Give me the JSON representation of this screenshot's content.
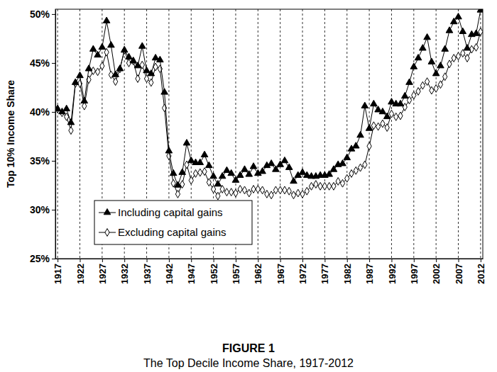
{
  "chart_data": {
    "type": "line",
    "title": "FIGURE 1",
    "subtitle": "The Top Decile Income Share, 1917-2012",
    "y_label": "Top 10% Income Share",
    "x": [
      1917,
      1918,
      1919,
      1920,
      1921,
      1922,
      1923,
      1924,
      1925,
      1926,
      1927,
      1928,
      1929,
      1930,
      1931,
      1932,
      1933,
      1934,
      1935,
      1936,
      1937,
      1938,
      1939,
      1940,
      1941,
      1942,
      1943,
      1944,
      1945,
      1946,
      1947,
      1948,
      1949,
      1950,
      1951,
      1952,
      1953,
      1954,
      1955,
      1956,
      1957,
      1958,
      1959,
      1960,
      1961,
      1962,
      1963,
      1964,
      1965,
      1966,
      1967,
      1968,
      1969,
      1970,
      1971,
      1972,
      1973,
      1974,
      1975,
      1976,
      1977,
      1978,
      1979,
      1980,
      1981,
      1982,
      1983,
      1984,
      1985,
      1986,
      1987,
      1988,
      1989,
      1990,
      1991,
      1992,
      1993,
      1994,
      1995,
      1996,
      1997,
      1998,
      1999,
      2000,
      2001,
      2002,
      2003,
      2004,
      2005,
      2006,
      2007,
      2008,
      2009,
      2010,
      2011,
      2012
    ],
    "series": [
      {
        "name": "Including capital gains",
        "color": "#000000",
        "marker": "triangle",
        "line_style": "solid",
        "values": [
          40.3,
          40.0,
          40.3,
          38.9,
          43.0,
          43.7,
          41.1,
          44.4,
          46.4,
          45.8,
          46.6,
          49.3,
          46.8,
          43.8,
          44.4,
          46.3,
          45.6,
          45.2,
          44.7,
          46.7,
          44.2,
          43.9,
          45.5,
          45.3,
          42.0,
          36.0,
          33.7,
          32.5,
          33.8,
          36.8,
          35.0,
          34.8,
          34.8,
          35.6,
          34.5,
          33.4,
          32.6,
          33.4,
          34.0,
          33.7,
          33.0,
          33.5,
          34.1,
          33.6,
          34.4,
          33.7,
          33.9,
          34.5,
          34.7,
          34.1,
          34.6,
          35.0,
          34.3,
          32.9,
          33.5,
          33.8,
          33.5,
          33.4,
          33.4,
          33.5,
          33.5,
          33.6,
          34.1,
          34.6,
          34.7,
          35.3,
          36.2,
          36.5,
          37.6,
          40.6,
          38.3,
          40.8,
          40.2,
          40.0,
          39.5,
          41.0,
          40.8,
          40.8,
          41.6,
          43.0,
          44.6,
          45.5,
          46.5,
          47.6,
          45.1,
          43.9,
          44.7,
          46.4,
          48.3,
          49.2,
          49.7,
          48.2,
          46.5,
          47.9,
          48.0,
          50.4
        ]
      },
      {
        "name": "Excluding capital gains",
        "color": "#000000",
        "marker": "open-diamond",
        "line_style": "solid",
        "values": [
          40.3,
          39.9,
          39.5,
          38.1,
          42.9,
          42.9,
          40.6,
          43.3,
          44.2,
          44.1,
          44.7,
          46.1,
          43.8,
          43.1,
          44.4,
          46.3,
          45.0,
          45.2,
          43.4,
          44.8,
          43.4,
          43.0,
          44.6,
          44.4,
          40.4,
          35.5,
          32.7,
          31.6,
          32.6,
          34.6,
          33.0,
          33.7,
          33.8,
          33.9,
          32.8,
          32.1,
          31.4,
          32.1,
          31.8,
          31.8,
          31.7,
          32.1,
          32.0,
          31.7,
          32.1,
          32.1,
          32.0,
          31.6,
          31.5,
          32.0,
          32.0,
          32.0,
          31.9,
          31.5,
          31.7,
          31.6,
          31.9,
          32.4,
          32.6,
          32.4,
          32.4,
          32.4,
          32.4,
          32.9,
          32.7,
          33.2,
          33.7,
          34.0,
          34.3,
          34.6,
          36.5,
          38.6,
          38.5,
          38.8,
          38.4,
          39.8,
          39.5,
          39.6,
          40.5,
          41.2,
          41.7,
          42.1,
          42.7,
          43.1,
          42.2,
          42.4,
          42.8,
          43.6,
          44.9,
          45.5,
          45.7,
          46.0,
          45.5,
          46.4,
          46.6,
          48.2
        ]
      }
    ],
    "xlim": [
      1916.5,
      2012.5
    ],
    "xticks": [
      1917,
      1922,
      1927,
      1932,
      1937,
      1942,
      1947,
      1952,
      1957,
      1962,
      1967,
      1972,
      1977,
      1982,
      1987,
      1992,
      1997,
      2002,
      2007,
      2012
    ],
    "ylim": [
      25,
      50.5
    ],
    "yticks": [
      {
        "value": 25,
        "label": "25%"
      },
      {
        "value": 30,
        "label": "30%"
      },
      {
        "value": 35,
        "label": "35%"
      },
      {
        "value": 40,
        "label": "40%"
      },
      {
        "value": 45,
        "label": "45%"
      },
      {
        "value": 50,
        "label": "50%"
      }
    ],
    "grid": "x",
    "legend": "lower left"
  }
}
